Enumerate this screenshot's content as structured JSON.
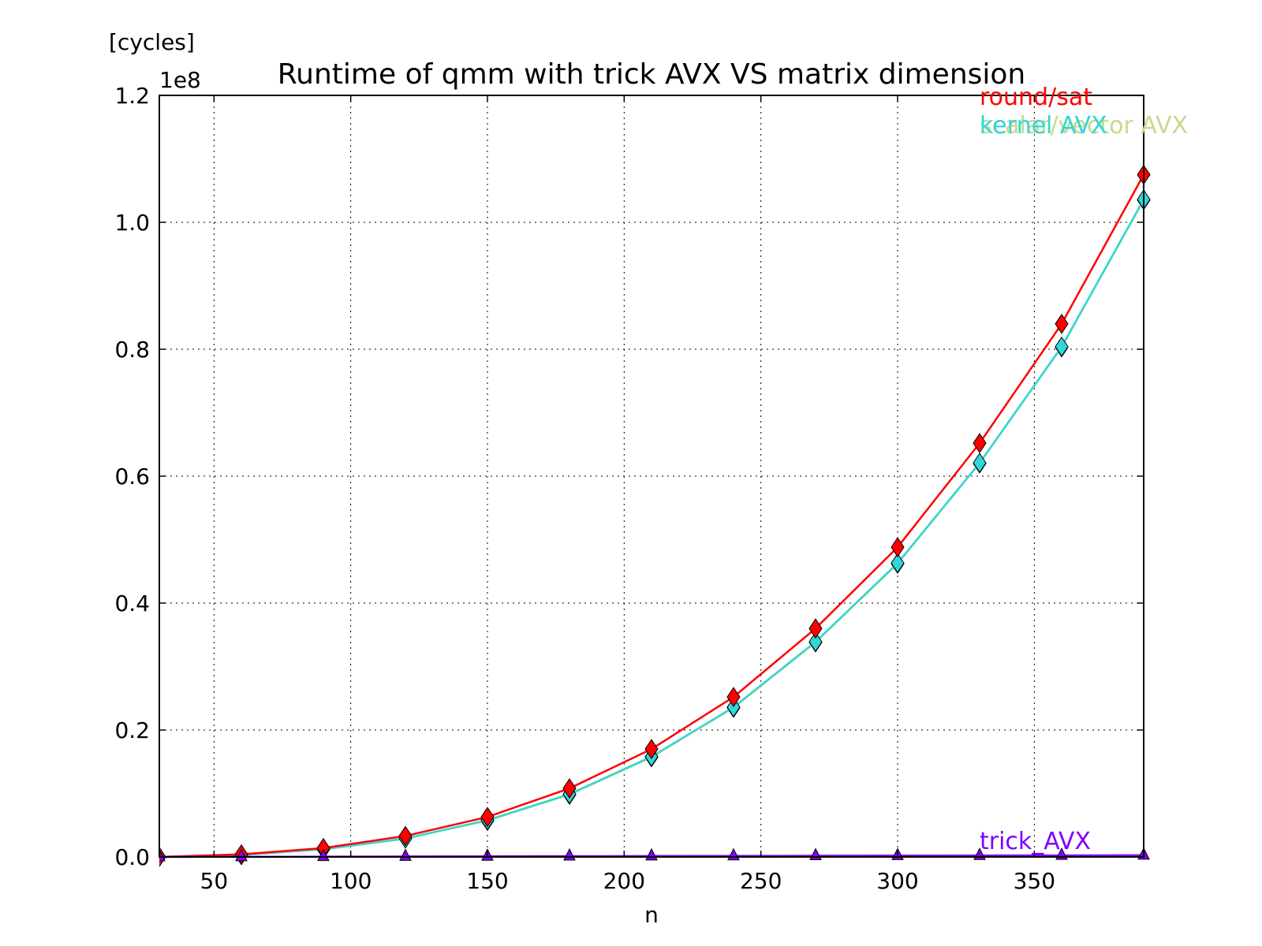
{
  "chart_data": {
    "type": "line",
    "title": "Runtime of qmm with trick AVX VS matrix dimension",
    "xlabel": "n",
    "ylabel": "[cycles]",
    "y_offset_label": "1e8",
    "y_scale_factor": 100000000,
    "xlim": [
      30,
      390
    ],
    "ylim": [
      0,
      120000000
    ],
    "grid": true,
    "x_ticks": [
      50,
      100,
      150,
      200,
      250,
      300,
      350
    ],
    "x_tick_labels": [
      "50",
      "100",
      "150",
      "200",
      "250",
      "300",
      "350"
    ],
    "y_ticks": [
      0,
      20000000,
      40000000,
      60000000,
      80000000,
      100000000,
      120000000
    ],
    "y_tick_labels": [
      "0.0",
      "0.2",
      "0.4",
      "0.6",
      "0.8",
      "1.0",
      "1.2"
    ],
    "x": [
      30,
      60,
      90,
      120,
      150,
      180,
      210,
      240,
      270,
      300,
      330,
      360,
      390
    ],
    "series": [
      {
        "name": "scalar/vector AVX",
        "color": "#c8d98a",
        "marker": "diamond",
        "values": [
          0,
          300000,
          1200000,
          2900000,
          5700000,
          9800000,
          15700000,
          23500000,
          33800000,
          46200000,
          62000000,
          80300000,
          103500000
        ]
      },
      {
        "name": "kernel AVX",
        "color": "#33d6d6",
        "marker": "diamond",
        "values": [
          0,
          300000,
          1200000,
          2900000,
          5800000,
          9900000,
          15800000,
          23600000,
          33900000,
          46300000,
          62100000,
          80400000,
          103600000
        ]
      },
      {
        "name": "round/sat",
        "color": "#ff0000",
        "marker": "diamond",
        "values": [
          0,
          400000,
          1400000,
          3300000,
          6300000,
          10800000,
          17000000,
          25200000,
          36000000,
          48800000,
          65200000,
          84000000,
          107500000
        ]
      },
      {
        "name": "trick_AVX",
        "color": "#7f00ff",
        "marker": "triangle",
        "values": [
          0,
          20000,
          40000,
          70000,
          100000,
          120000,
          140000,
          160000,
          180000,
          200000,
          220000,
          240000,
          260000
        ]
      }
    ]
  }
}
